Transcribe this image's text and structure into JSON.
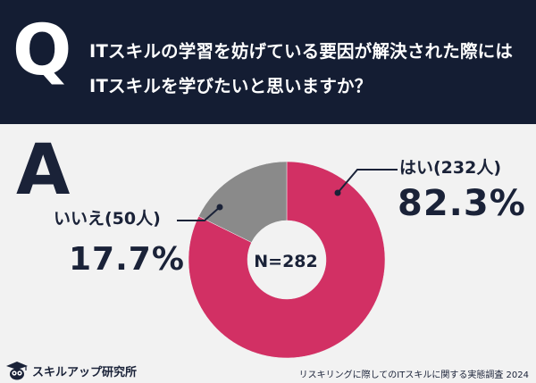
{
  "header": {
    "q_letter": "Q",
    "question_line1": "ITスキルの学習を妨げている要因が解決された際には",
    "question_line2": "ITスキルを学びたいと思いますか？"
  },
  "answer": {
    "a_letter": "A"
  },
  "chart_data": {
    "type": "pie",
    "style": "donut",
    "center_text": "N=282",
    "slices": [
      {
        "label": "はい(232人)",
        "count": 232,
        "percent": 82.3,
        "percent_text": "82.3%",
        "color": "#d23064"
      },
      {
        "label": "いいえ(50人)",
        "count": 50,
        "percent": 17.7,
        "percent_text": "17.7%",
        "color": "#8a8a8a"
      }
    ],
    "legend": "none",
    "grid": false
  },
  "footer": {
    "logo_text": "スキルアップ研究所",
    "source": "リスキリングに際してのITスキルに関する実態調査 2024"
  },
  "colors": {
    "header_bg": "#141d33",
    "page_bg": "#f2f2f2",
    "text_dark": "#1a2238"
  }
}
